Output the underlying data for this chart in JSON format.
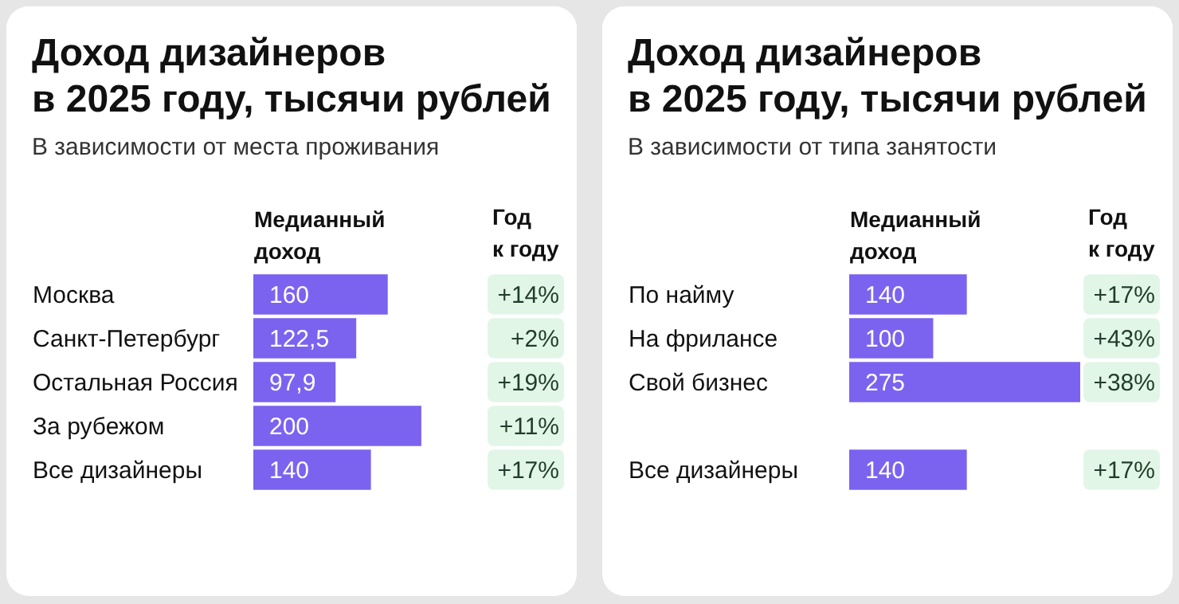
{
  "chart_data": [
    {
      "type": "bar",
      "orientation": "horizontal",
      "title": "Доход дизайнеров в 2025 году, тысячи рублей",
      "subtitle": "В зависимости от места проживания",
      "xlabel": "Медианный доход",
      "y2label": "Год к году",
      "categories": [
        "Москва",
        "Санкт-Петербург",
        "Остальная Россия",
        "За рубежом",
        "Все дизайнеры"
      ],
      "values": [
        160,
        122.5,
        97.9,
        200,
        140
      ],
      "value_labels": [
        "160",
        "122,5",
        "97,9",
        "200",
        "140"
      ],
      "color": "#7b63f0",
      "annotations": [
        "+14%",
        "+2%",
        "+19%",
        "+11%",
        "+17%"
      ]
    },
    {
      "type": "bar",
      "orientation": "horizontal",
      "title": "Доход дизайнеров в 2025 году, тысячи рублей",
      "subtitle": "В зависимости от типа занятости",
      "xlabel": "Медианный доход",
      "y2label": "Год к году",
      "categories": [
        "По найму",
        "На фрилансе",
        "Свой бизнес",
        null,
        "Все дизайнеры"
      ],
      "values": [
        140,
        100,
        275,
        null,
        140
      ],
      "value_labels": [
        "140",
        "100",
        "275",
        null,
        "140"
      ],
      "color": "#7b63f0",
      "annotations": [
        "+17%",
        "+43%",
        "+38%",
        null,
        "+17%"
      ]
    }
  ]
}
